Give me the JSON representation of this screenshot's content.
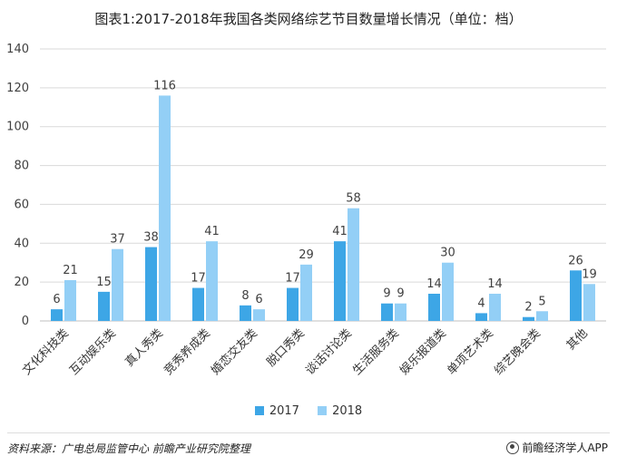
{
  "title": "图表1:2017-2018年我国各类网络综艺节目数量增长情况（单位：档）",
  "source": "资料来源：广电总局监管中心  前瞻产业研究院整理",
  "brand": "前瞻经济学人APP",
  "colors": {
    "s2017": "#3DA6E6",
    "s2018": "#93CFF6",
    "grid": "#d9d9d9",
    "axis": "#bfbfbf",
    "text": "#404040"
  },
  "chart_data": {
    "type": "bar",
    "title": "图表1:2017-2018年我国各类网络综艺节目数量增长情况（单位：档）",
    "categories": [
      "文化科技类",
      "互动娱乐类",
      "真人秀类",
      "竞秀养成类",
      "婚恋交友类",
      "脱口秀类",
      "谈话讨论类",
      "生活服务类",
      "娱乐报道类",
      "单项艺术类",
      "综艺晚会类",
      "其他"
    ],
    "series": [
      {
        "name": "2017",
        "values": [
          6,
          15,
          38,
          17,
          8,
          17,
          41,
          9,
          14,
          4,
          2,
          26
        ]
      },
      {
        "name": "2018",
        "values": [
          21,
          37,
          116,
          41,
          6,
          29,
          58,
          9,
          30,
          14,
          5,
          19
        ]
      }
    ],
    "ylim": [
      0,
      140
    ],
    "yticks": [
      0,
      20,
      40,
      60,
      80,
      100,
      120,
      140
    ],
    "grid": true,
    "legend": "bottom-center"
  }
}
